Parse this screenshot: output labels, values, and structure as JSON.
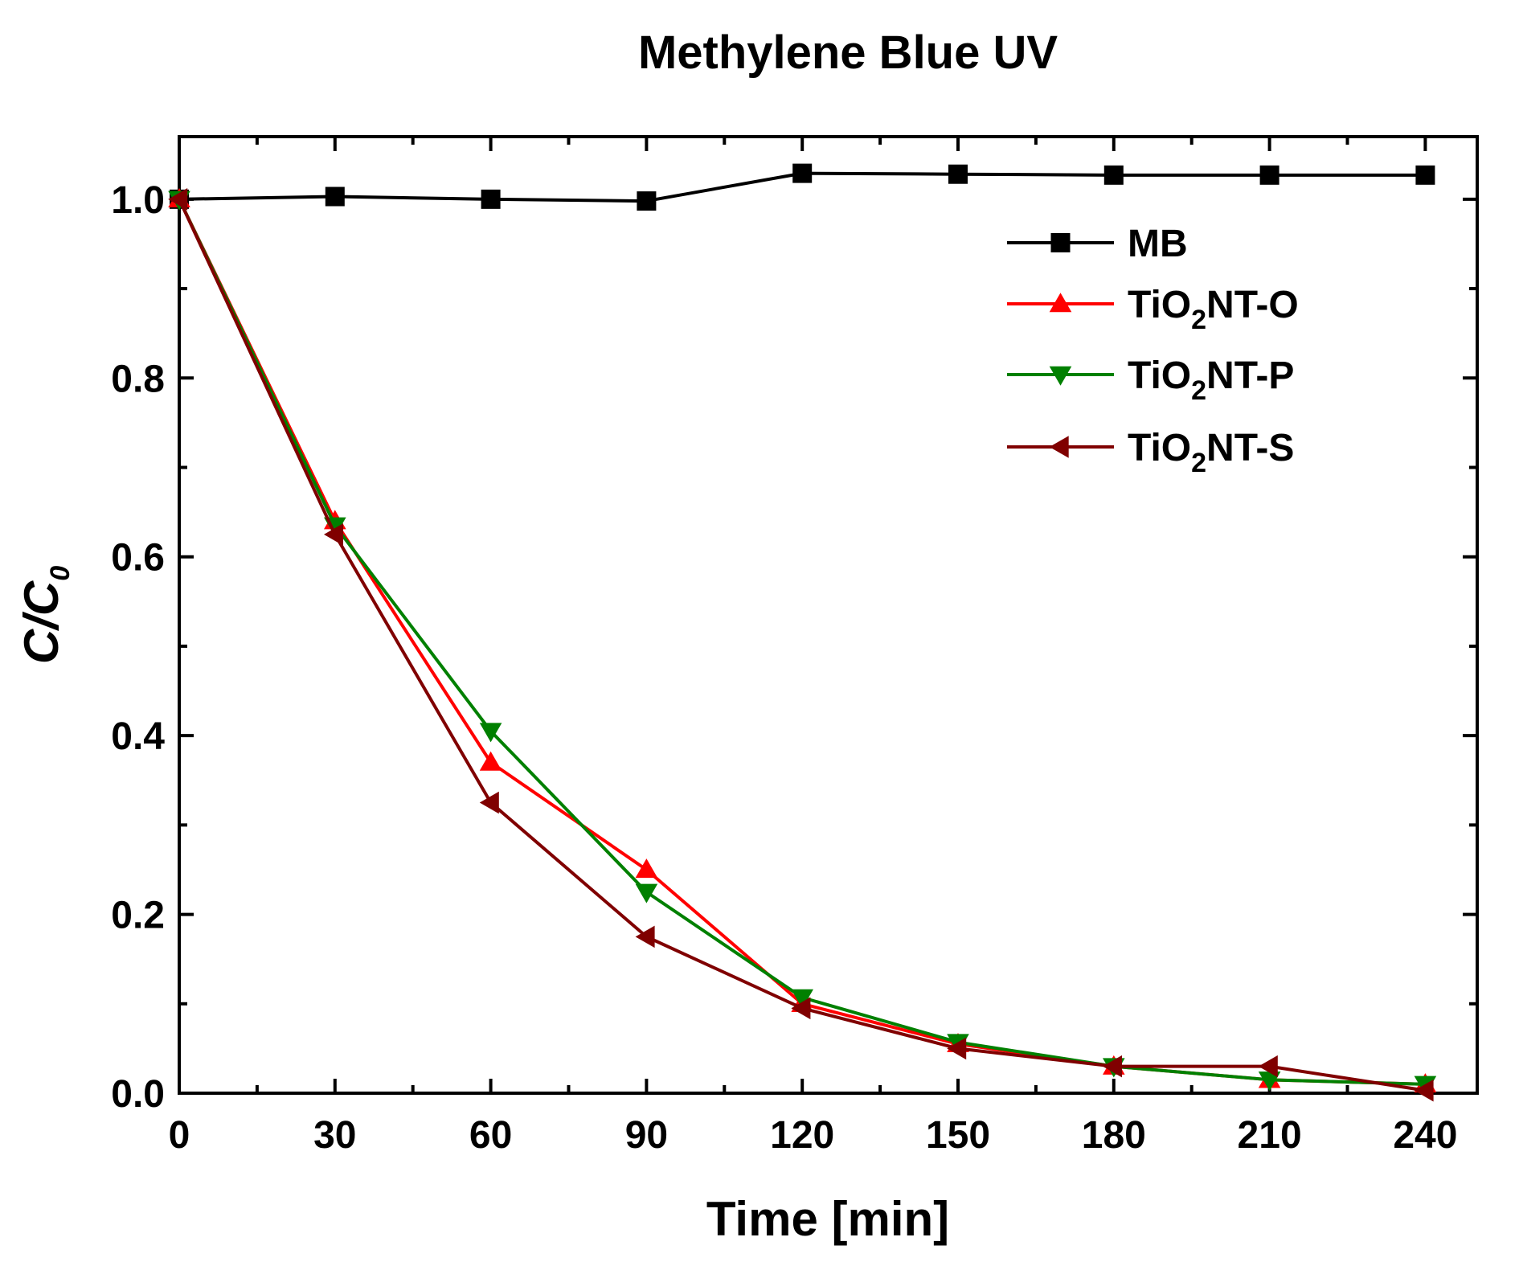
{
  "chart_data": {
    "type": "line",
    "title": "Methylene Blue UV",
    "xlabel": "Time [min]",
    "ylabel": {
      "main": "C/C",
      "sub": "0"
    },
    "x": [
      0,
      30,
      60,
      90,
      120,
      150,
      180,
      210,
      240
    ],
    "xlim": [
      0,
      250
    ],
    "ylim": [
      0,
      1.07
    ],
    "xticks": [
      0,
      30,
      60,
      90,
      120,
      150,
      180,
      210,
      240
    ],
    "xtick_labels": [
      "0",
      "30",
      "60",
      "90",
      "120",
      "150",
      "180",
      "210",
      "240"
    ],
    "yticks": [
      0,
      0.2,
      0.4,
      0.6,
      0.8,
      1.0
    ],
    "ytick_labels": [
      "0.0",
      "0.2",
      "0.4",
      "0.6",
      "0.8",
      "1.0"
    ],
    "legend_position": "top-right",
    "grid": false,
    "series": [
      {
        "name": "MB",
        "legend": {
          "pre": "MB",
          "sub": "",
          "post": ""
        },
        "color": "#000000",
        "marker": "square",
        "values": [
          1.0,
          1.003,
          1.0,
          0.998,
          1.029,
          1.028,
          1.027,
          1.027,
          1.027
        ]
      },
      {
        "name": "TiO2NT-O",
        "legend": {
          "pre": "TiO",
          "sub": "2",
          "post": "NT-O"
        },
        "color": "#ff0000",
        "marker": "triangle-up",
        "values": [
          1.0,
          0.64,
          0.37,
          0.25,
          0.1,
          0.055,
          0.03,
          0.015,
          0.01
        ]
      },
      {
        "name": "TiO2NT-P",
        "legend": {
          "pre": "TiO",
          "sub": "2",
          "post": "NT-P"
        },
        "color": "#008000",
        "marker": "triangle-down",
        "values": [
          1.0,
          0.635,
          0.405,
          0.225,
          0.107,
          0.057,
          0.03,
          0.015,
          0.01
        ]
      },
      {
        "name": "TiO2NT-S",
        "legend": {
          "pre": "TiO",
          "sub": "2",
          "post": "NT-S"
        },
        "color": "#800000",
        "marker": "triangle-left",
        "values": [
          1.0,
          0.625,
          0.325,
          0.175,
          0.095,
          0.05,
          0.03,
          0.03,
          0.003
        ]
      }
    ]
  }
}
